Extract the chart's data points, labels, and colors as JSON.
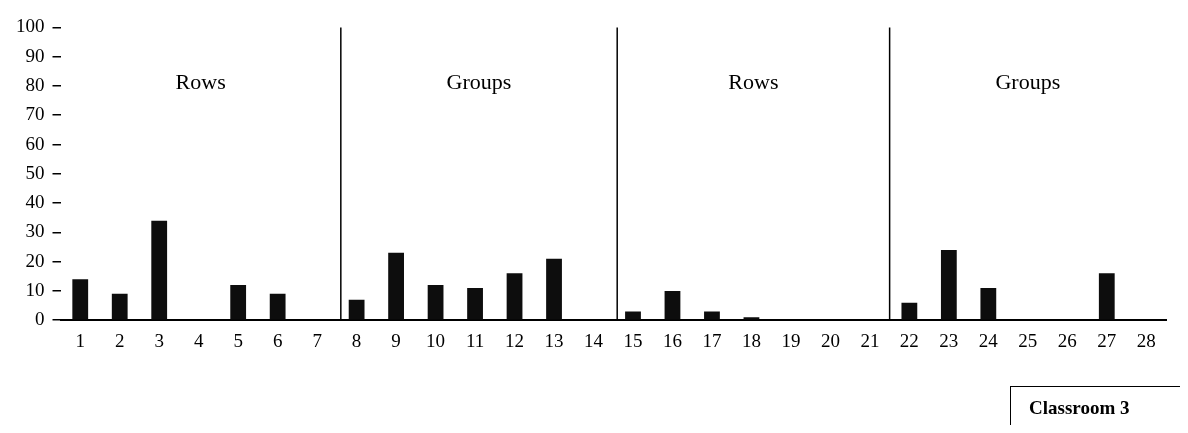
{
  "chart_data": {
    "type": "bar",
    "x": [
      1,
      2,
      3,
      4,
      5,
      6,
      7,
      8,
      9,
      10,
      11,
      12,
      13,
      14,
      15,
      16,
      17,
      18,
      19,
      20,
      21,
      22,
      23,
      24,
      25,
      26,
      27,
      28
    ],
    "values": [
      14,
      9,
      34,
      0,
      12,
      9,
      0,
      7,
      23,
      12,
      11,
      16,
      21,
      0,
      3,
      10,
      3,
      1,
      0,
      0,
      0,
      6,
      24,
      11,
      0,
      0,
      16,
      0
    ],
    "color": "#0d0d0d",
    "xlim": [
      0.5,
      28.5
    ],
    "xticks": [
      1,
      2,
      3,
      4,
      5,
      6,
      7,
      8,
      9,
      10,
      11,
      12,
      13,
      14,
      15,
      16,
      17,
      18,
      19,
      20,
      21,
      22,
      23,
      24,
      25,
      26,
      27,
      28
    ],
    "ylim": [
      0,
      100
    ],
    "yticks": [
      0,
      10,
      20,
      30,
      40,
      50,
      60,
      70,
      80,
      90,
      100
    ],
    "grid": false,
    "legend": false,
    "ref_lines": [
      {
        "axis": "x",
        "value": 7.6,
        "color": "#000000"
      },
      {
        "axis": "x",
        "value": 14.6,
        "color": "#000000"
      },
      {
        "axis": "x",
        "value": 21.5,
        "color": "#000000"
      }
    ],
    "annotations": [
      "Rows",
      "Groups",
      "Rows",
      "Groups",
      "Classroom 3"
    ]
  }
}
